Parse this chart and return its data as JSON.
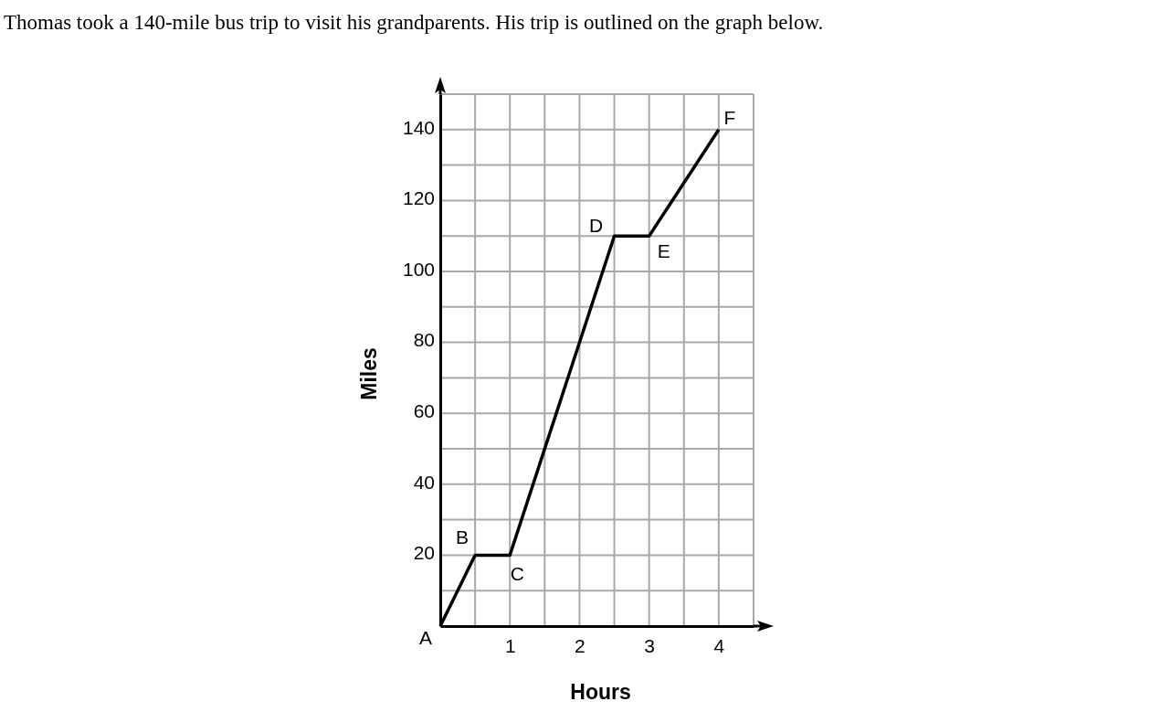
{
  "chart_data": {
    "type": "line",
    "title": "Thomas took a 140-mile bus trip to visit his grandparents. His trip is outlined on the graph below.",
    "xlabel": "Hours",
    "ylabel": "Miles",
    "x": [
      0,
      0.5,
      1,
      2.5,
      3,
      4
    ],
    "series": [
      {
        "color": "#000000",
        "values": [
          0,
          20,
          20,
          110,
          110,
          140
        ]
      }
    ],
    "xlim": [
      0,
      4.5
    ],
    "ylim": [
      0,
      150
    ],
    "xticks": [
      {
        "value": 0,
        "label": null
      },
      {
        "value": 0.5,
        "label": null
      },
      1,
      {
        "value": 1.5,
        "label": null
      },
      2,
      {
        "value": 2.5,
        "label": null
      },
      3,
      {
        "value": 3.5,
        "label": null
      },
      4,
      {
        "value": 4.5,
        "label": null
      }
    ],
    "yticks": [
      {
        "value": 0,
        "label": null
      },
      {
        "value": 10,
        "label": null
      },
      20,
      {
        "value": 30,
        "label": null
      },
      40,
      {
        "value": 50,
        "label": null
      },
      60,
      {
        "value": 70,
        "label": null
      },
      80,
      {
        "value": 90,
        "label": null
      },
      100,
      {
        "value": 110,
        "label": null
      },
      120,
      {
        "value": 130,
        "label": null
      },
      140,
      {
        "value": 150,
        "label": null
      }
    ],
    "grid": true,
    "marker": "none",
    "line_style": "solid",
    "annotations": [
      {
        "text": "A",
        "x": 0,
        "y": 0
      },
      {
        "text": "B",
        "x": 0.5,
        "y": 20
      },
      {
        "text": "C",
        "x": 1,
        "y": 20
      },
      {
        "text": "D",
        "x": 2.5,
        "y": 110
      },
      {
        "text": "E",
        "x": 3,
        "y": 110
      },
      {
        "text": "F",
        "x": 4,
        "y": 140
      }
    ]
  }
}
